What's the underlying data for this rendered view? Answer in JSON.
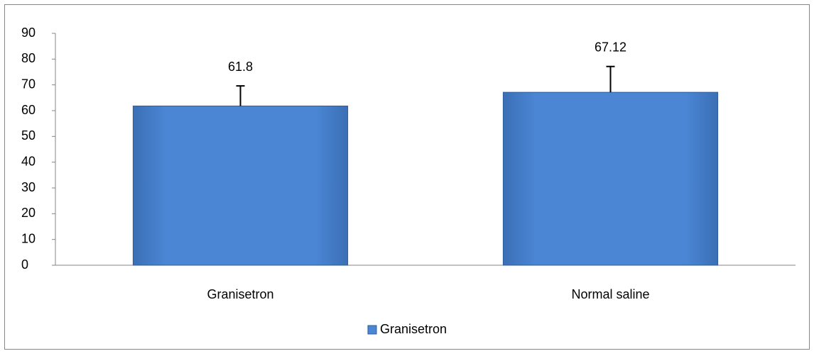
{
  "chart_data": {
    "type": "bar",
    "categories": [
      "Granisetron",
      "Normal saline"
    ],
    "series": [
      {
        "name": "Granisetron",
        "color": "#4a86d4",
        "values": [
          61.8,
          67.12
        ],
        "errors": [
          7.8,
          10.0
        ]
      }
    ],
    "ylim": [
      0,
      90
    ],
    "yticks": [
      0,
      10,
      20,
      30,
      40,
      50,
      60,
      70,
      80,
      90
    ],
    "legend": "bottom"
  }
}
